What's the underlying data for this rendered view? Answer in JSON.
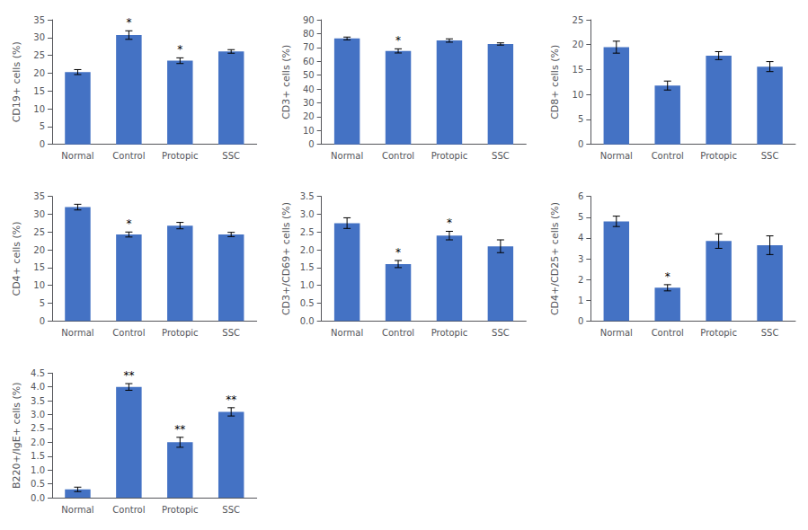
{
  "chart_data": [
    {
      "type": "bar",
      "ylabel": "CD19+ cells (%)",
      "color": "#4472C4",
      "grid": false,
      "categories": [
        "Normal",
        "Control",
        "Protopic",
        "SSC"
      ],
      "values": [
        20.3,
        30.7,
        23.5,
        26.1
      ],
      "errors": [
        0.7,
        1.2,
        0.8,
        0.5
      ],
      "annotations": [
        {
          "category": "Control",
          "text": "*"
        },
        {
          "category": "Protopic",
          "text": "*"
        }
      ],
      "ylim": [
        0,
        35
      ],
      "yticks": [
        0,
        5,
        10,
        15,
        20,
        25,
        30,
        35
      ]
    },
    {
      "type": "bar",
      "ylabel": "CD3+ cells (%)",
      "color": "#4472C4",
      "grid": false,
      "categories": [
        "Normal",
        "Control",
        "Protopic",
        "SSC"
      ],
      "values": [
        76.5,
        67.5,
        75.0,
        72.5
      ],
      "errors": [
        1.0,
        1.5,
        1.2,
        0.8
      ],
      "annotations": [
        {
          "category": "Control",
          "text": "*"
        }
      ],
      "ylim": [
        0,
        90
      ],
      "yticks": [
        0,
        10,
        20,
        30,
        40,
        50,
        60,
        70,
        80,
        90
      ]
    },
    {
      "type": "bar",
      "ylabel": "CD8+ cells (%)",
      "color": "#4472C4",
      "grid": false,
      "categories": [
        "Normal",
        "Control",
        "Protopic",
        "SSC"
      ],
      "values": [
        19.5,
        11.8,
        17.8,
        15.6
      ],
      "errors": [
        1.2,
        0.9,
        0.8,
        1.0
      ],
      "ylim": [
        0,
        25
      ],
      "yticks": [
        0,
        5,
        10,
        15,
        20,
        25
      ]
    },
    {
      "type": "bar",
      "ylabel": "CD4+ cells (%)",
      "color": "#4472C4",
      "grid": false,
      "categories": [
        "Normal",
        "Control",
        "Protopic",
        "SSC"
      ],
      "values": [
        32.0,
        24.3,
        26.8,
        24.3
      ],
      "errors": [
        0.8,
        0.7,
        0.9,
        0.6
      ],
      "annotations": [
        {
          "category": "Control",
          "text": "*"
        }
      ],
      "ylim": [
        0,
        35
      ],
      "yticks": [
        0,
        5,
        10,
        15,
        20,
        25,
        30,
        35
      ]
    },
    {
      "type": "bar",
      "ylabel": "CD3+/CD69+ cells (%)",
      "color": "#4472C4",
      "grid": false,
      "categories": [
        "Normal",
        "Control",
        "Protopic",
        "SSC"
      ],
      "values": [
        2.75,
        1.6,
        2.4,
        2.1
      ],
      "errors": [
        0.15,
        0.1,
        0.12,
        0.18
      ],
      "annotations": [
        {
          "category": "Control",
          "text": "*"
        },
        {
          "category": "Protopic",
          "text": "*"
        }
      ],
      "ylim": [
        0.0,
        3.5
      ],
      "yticks": [
        {
          "value": 0,
          "label": "0.0"
        },
        0.5,
        {
          "value": 1,
          "label": "1.0"
        },
        1.5,
        {
          "value": 2,
          "label": "2.0"
        },
        2.5,
        {
          "value": 3,
          "label": "3.0"
        },
        3.5
      ]
    },
    {
      "type": "bar",
      "ylabel": "CD4+/CD25+ cells (%)",
      "color": "#4472C4",
      "grid": false,
      "categories": [
        "Normal",
        "Control",
        "Protopic",
        "SSC"
      ],
      "values": [
        4.8,
        1.6,
        3.85,
        3.65
      ],
      "errors": [
        0.25,
        0.15,
        0.35,
        0.45
      ],
      "annotations": [
        {
          "category": "Control",
          "text": "*"
        }
      ],
      "ylim": [
        0,
        6
      ],
      "yticks": [
        0,
        1,
        2,
        3,
        4,
        5,
        6
      ]
    },
    {
      "type": "bar",
      "ylabel": "B220+/IgE+ cells (%)",
      "color": "#4472C4",
      "grid": false,
      "categories": [
        "Normal",
        "Control",
        "Protopic",
        "SSC"
      ],
      "values": [
        0.3,
        4.0,
        2.0,
        3.1
      ],
      "errors": [
        0.08,
        0.12,
        0.18,
        0.15
      ],
      "annotations": [
        {
          "category": "Control",
          "text": "**"
        },
        {
          "category": "Protopic",
          "text": "**"
        },
        {
          "category": "SSC",
          "text": "**"
        }
      ],
      "ylim": [
        0,
        4.5
      ],
      "yticks": [
        {
          "value": 0,
          "label": "0.0"
        },
        0.5,
        {
          "value": 1,
          "label": "1.0"
        },
        1.5,
        {
          "value": 2,
          "label": "2.0"
        },
        2.5,
        {
          "value": 3,
          "label": "3.0"
        },
        3.5,
        {
          "value": 4,
          "label": "4.0"
        },
        4.5
      ]
    }
  ]
}
